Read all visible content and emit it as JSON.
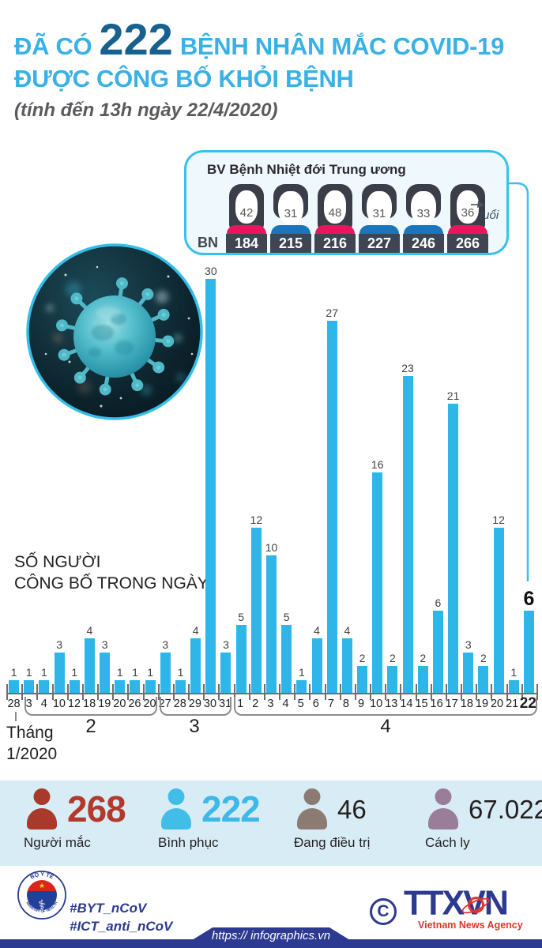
{
  "header": {
    "title_prefix": "ĐÃ CÓ",
    "title_number": "222",
    "title_rest": "BỆNH NHÂN MẮC COVID-19",
    "title_line2": "ĐƯỢC CÔNG BỐ KHỎI BỆNH",
    "subtitle": "(tính đến 13h ngày 22/4/2020)"
  },
  "callout": {
    "title": "BV Bệnh Nhiệt đới Trung ương",
    "bn_label": "BN",
    "age_label": "tuổi",
    "patients": [
      {
        "age": "42",
        "bn": "184",
        "gender": "female"
      },
      {
        "age": "31",
        "bn": "215",
        "gender": "male"
      },
      {
        "age": "48",
        "bn": "216",
        "gender": "female"
      },
      {
        "age": "31",
        "bn": "227",
        "gender": "male"
      },
      {
        "age": "33",
        "bn": "246",
        "gender": "male"
      },
      {
        "age": "36",
        "bn": "266",
        "gender": "female"
      }
    ]
  },
  "chart_caption": {
    "line1": "SỐ NGƯỜI",
    "line2": "CÔNG BỐ TRONG NGÀY"
  },
  "chart_data": {
    "type": "bar",
    "title": "Số người công bố trong ngày",
    "categories": [
      "28",
      "3",
      "4",
      "10",
      "12",
      "18",
      "19",
      "20",
      "26",
      "20",
      "27",
      "28",
      "29",
      "30",
      "31",
      "1",
      "2",
      "3",
      "4",
      "5",
      "6",
      "7",
      "8",
      "9",
      "10",
      "13",
      "14",
      "15",
      "16",
      "17",
      "18",
      "19",
      "20",
      "21",
      "22"
    ],
    "values": [
      1,
      1,
      1,
      3,
      1,
      4,
      3,
      1,
      1,
      1,
      3,
      1,
      4,
      30,
      3,
      5,
      12,
      10,
      5,
      1,
      4,
      27,
      4,
      2,
      16,
      2,
      23,
      2,
      6,
      21,
      3,
      2,
      12,
      1,
      6
    ],
    "month_groups": [
      {
        "label": "Tháng 1/2020",
        "start": 0,
        "end": 0
      },
      {
        "label": "2",
        "start": 1,
        "end": 9
      },
      {
        "label": "3",
        "start": 10,
        "end": 14
      },
      {
        "label": "4",
        "start": 15,
        "end": 34
      }
    ],
    "month1_line1": "Tháng",
    "month1_line2": "1/2020",
    "bar_color": "#2EB6E9",
    "ylim": [
      0,
      30
    ],
    "grid": false,
    "highlighted_last_bar": true
  },
  "stats": {
    "band_color": "#D8ECF6",
    "items": [
      {
        "value": "268",
        "label": "Người mắc",
        "icon_color": "#A8392B",
        "value_color": "#B2392B",
        "emph": true
      },
      {
        "value": "222",
        "label": "Bình phục",
        "icon_color": "#41BEE8",
        "value_color": "#3CB9E9",
        "emph": true
      },
      {
        "value": "46",
        "label": "Đang điều trị",
        "icon_color": "#8B7B73",
        "value_color": "#231F20",
        "emph": false
      },
      {
        "value": "67.022",
        "label": "Cách ly",
        "icon_color": "#9A7D99",
        "value_color": "#231F20",
        "emph": false
      }
    ]
  },
  "footer": {
    "hashtag1": "#BYT_nCoV",
    "hashtag2": "#ICT_anti_nCoV",
    "copyright": "C",
    "ttxvn": "TTXVN",
    "agency": "Vietnam News Agency",
    "url": "https:// infographics.vn",
    "moh_top": "BỘ Y TẾ",
    "moh_bottom": "MINISTRY OF HEALTH"
  },
  "colors": {
    "accent_cyan": "#3AB1E6",
    "title_number_blue": "#17618F",
    "navy": "#2B3990",
    "female_shirt": "#E8175D",
    "male_shirt": "#1B75BC",
    "plate": "#3F4651"
  }
}
